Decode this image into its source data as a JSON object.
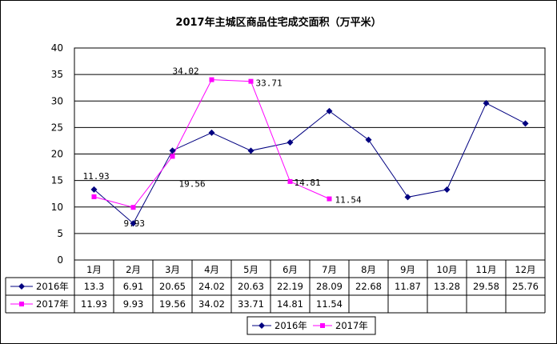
{
  "chart_data": {
    "type": "line",
    "title": "2017年主城区商品住宅成交面积（万平米）",
    "categories": [
      "1月",
      "2月",
      "3月",
      "4月",
      "5月",
      "6月",
      "7月",
      "8月",
      "9月",
      "10月",
      "11月",
      "12月"
    ],
    "series": [
      {
        "name": "2016年",
        "color": "#000080",
        "marker": "diamond",
        "values": [
          13.3,
          6.91,
          20.65,
          24.02,
          20.63,
          22.19,
          28.09,
          22.68,
          11.87,
          13.28,
          29.58,
          25.76
        ]
      },
      {
        "name": "2017年",
        "color": "#FF00FF",
        "marker": "square",
        "values": [
          11.93,
          9.93,
          19.56,
          34.02,
          33.71,
          14.81,
          11.54,
          null,
          null,
          null,
          null,
          null
        ]
      }
    ],
    "data_labels": {
      "series": "2017年",
      "values": [
        "11.93",
        "9.93",
        "19.56",
        "34.02",
        "33.71",
        "14.81",
        "11.54"
      ]
    },
    "table": {
      "rows": [
        {
          "label": "2016年",
          "values": [
            "13.3",
            "6.91",
            "20.65",
            "24.02",
            "20.63",
            "22.19",
            "28.09",
            "22.68",
            "11.87",
            "13.28",
            "29.58",
            "25.76"
          ]
        },
        {
          "label": "2017年",
          "values": [
            "11.93",
            "9.93",
            "19.56",
            "34.02",
            "33.71",
            "14.81",
            "11.54",
            "",
            "",
            "",
            "",
            ""
          ]
        }
      ]
    },
    "ylim": [
      0,
      40
    ],
    "yticks": [
      "0",
      "5",
      "10",
      "15",
      "20",
      "25",
      "30",
      "35",
      "40"
    ],
    "grid": true,
    "legend": [
      "2016年",
      "2017年"
    ],
    "legend_position": "bottom"
  }
}
